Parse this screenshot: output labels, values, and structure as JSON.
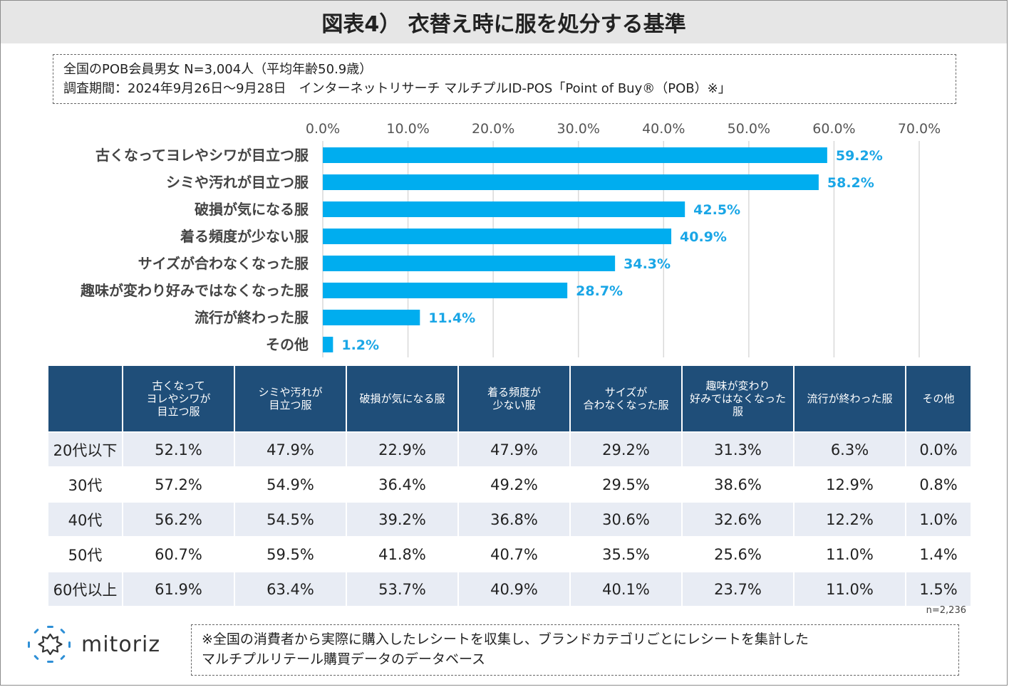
{
  "title": "図表4） 衣替え時に服を処分する基準",
  "survey_info": {
    "line1": "全国のPOB会員男女 N=3,004人（平均年齢50.9歳）",
    "line2": "調査期間：2024年9月26日～9月28日　インターネットリサーチ マルチプルID-POS「Point of Buy®（POB）※」"
  },
  "chart_data": {
    "type": "bar",
    "orientation": "horizontal",
    "categories": [
      "古くなってヨレやシワが目立つ服",
      "シミや汚れが目立つ服",
      "破損が気になる服",
      "着る頻度が少ない服",
      "サイズが合わなくなった服",
      "趣味が変わり好みではなくなった服",
      "流行が終わった服",
      "その他"
    ],
    "values": [
      59.2,
      58.2,
      42.5,
      40.9,
      34.3,
      28.7,
      11.4,
      1.2
    ],
    "value_labels": [
      "59.2%",
      "58.2%",
      "42.5%",
      "40.9%",
      "34.3%",
      "28.7%",
      "11.4%",
      "1.2%"
    ],
    "xlim": [
      0,
      70
    ],
    "ticks": [
      0,
      10,
      20,
      30,
      40,
      50,
      60,
      70
    ],
    "tick_labels": [
      "0.0%",
      "10.0%",
      "20.0%",
      "30.0%",
      "40.0%",
      "50.0%",
      "60.0%",
      "70.0%"
    ],
    "axis_position": "top",
    "grid": true,
    "bar_color": "#00adef",
    "label_color": "#1aa6e6"
  },
  "table": {
    "corner": "",
    "headers": [
      "古くなって\nヨレやシワが\n目立つ服",
      "シミや汚れが\n目立つ服",
      "破損が気になる服",
      "着る頻度が\n少ない服",
      "サイズが\n合わなくなった服",
      "趣味が変わり\n好みではなくなった\n服",
      "流行が終わった服",
      "その他"
    ],
    "rows": [
      {
        "label": "20代以下",
        "values": [
          "52.1%",
          "47.9%",
          "22.9%",
          "47.9%",
          "29.2%",
          "31.3%",
          "6.3%",
          "0.0%"
        ]
      },
      {
        "label": "30代",
        "values": [
          "57.2%",
          "54.9%",
          "36.4%",
          "49.2%",
          "29.5%",
          "38.6%",
          "12.9%",
          "0.8%"
        ]
      },
      {
        "label": "40代",
        "values": [
          "56.2%",
          "54.5%",
          "39.2%",
          "36.8%",
          "30.6%",
          "32.6%",
          "12.2%",
          "1.0%"
        ]
      },
      {
        "label": "50代",
        "values": [
          "60.7%",
          "59.5%",
          "41.8%",
          "40.7%",
          "35.5%",
          "25.6%",
          "11.0%",
          "1.4%"
        ]
      },
      {
        "label": "60代以上",
        "values": [
          "61.9%",
          "63.4%",
          "53.7%",
          "40.9%",
          "40.1%",
          "23.7%",
          "11.0%",
          "1.5%"
        ]
      }
    ],
    "header_color": "#1f4e79"
  },
  "sample_note": "n=2,236",
  "logo": {
    "text": "mitoriz",
    "icon": "mitoriz-star-logo-icon"
  },
  "footnote": {
    "line1": "※全国の消費者から実際に購入したレシートを収集し、ブランドカテゴリごとにレシートを集計した",
    "line2": "マルチプルリテール購買データのデータベース"
  }
}
